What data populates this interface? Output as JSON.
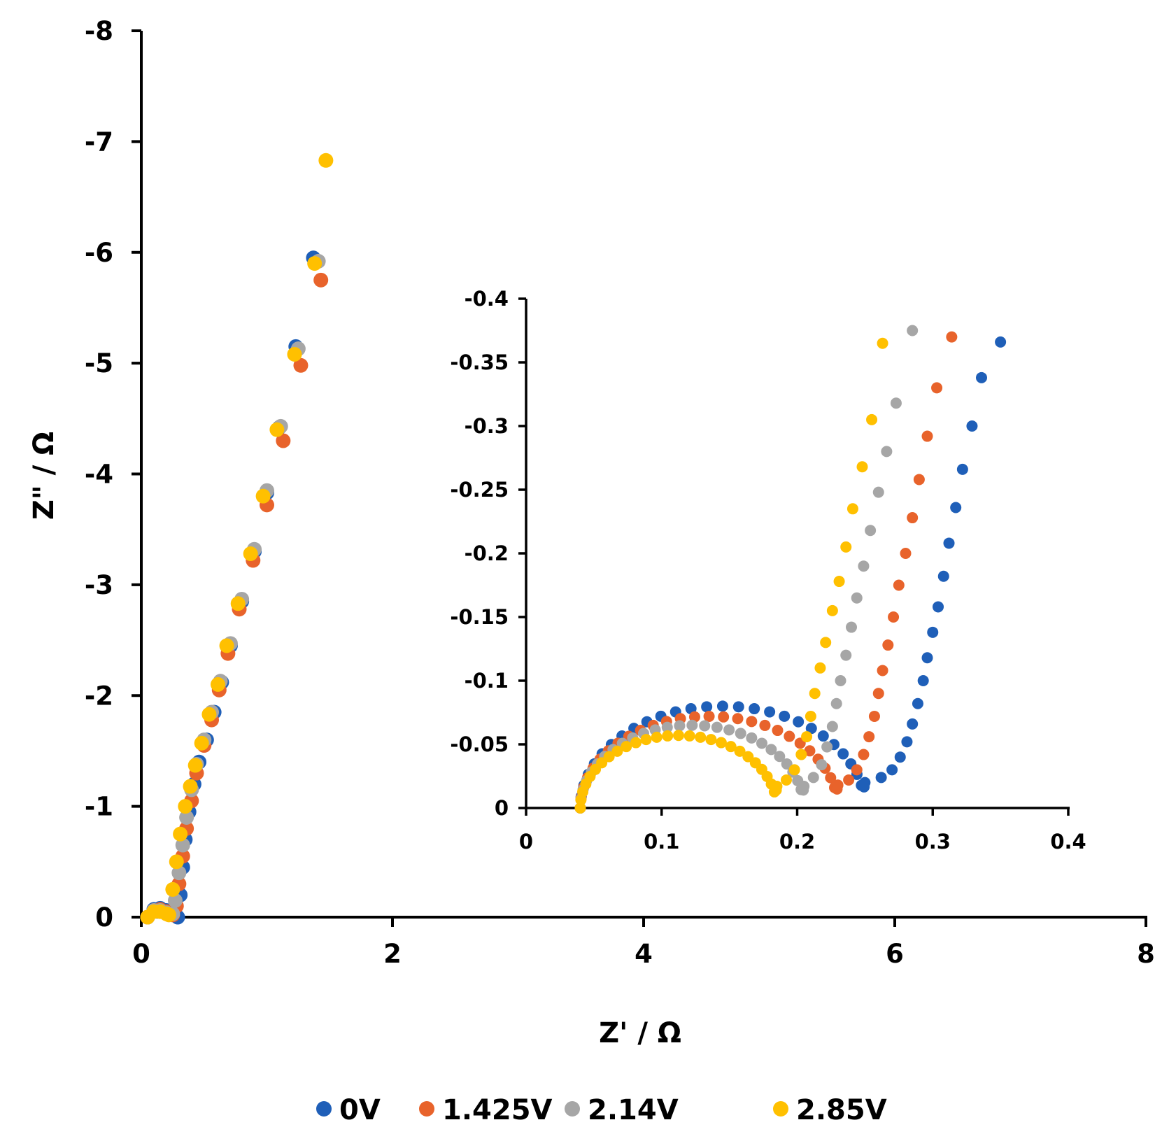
{
  "chart_data": [
    {
      "type": "scatter",
      "panel": "main",
      "xlabel": "Z' / Ω",
      "ylabel": "Z\" / Ω",
      "xlim": [
        0,
        8
      ],
      "ylim": [
        0,
        -8
      ],
      "x_ticks": [
        "0",
        "2",
        "4",
        "6",
        "8"
      ],
      "y_ticks": [
        "0",
        "-1",
        "-2",
        "-3",
        "-4",
        "-5",
        "-6",
        "-7",
        "-8"
      ],
      "grid": false,
      "legend_position": "bottom",
      "series": [
        {
          "name": "0V",
          "color": "#1f5fb8",
          "points": [
            [
              0.05,
              0.0
            ],
            [
              0.1,
              -0.07
            ],
            [
              0.15,
              -0.08
            ],
            [
              0.2,
              -0.06
            ],
            [
              0.25,
              -0.03
            ],
            [
              0.29,
              0.0
            ],
            [
              0.31,
              -0.2
            ],
            [
              0.33,
              -0.45
            ],
            [
              0.35,
              -0.7
            ],
            [
              0.38,
              -0.95
            ],
            [
              0.42,
              -1.2
            ],
            [
              0.46,
              -1.4
            ],
            [
              0.52,
              -1.6
            ],
            [
              0.58,
              -1.85
            ],
            [
              0.64,
              -2.12
            ],
            [
              0.71,
              -2.45
            ],
            [
              0.8,
              -2.85
            ],
            [
              0.9,
              -3.3
            ],
            [
              1.0,
              -3.83
            ],
            [
              1.1,
              -4.42
            ],
            [
              1.23,
              -5.15
            ],
            [
              1.37,
              -5.95
            ]
          ]
        },
        {
          "name": "1.425V",
          "color": "#e8632b",
          "points": [
            [
              0.05,
              0.0
            ],
            [
              0.1,
              -0.06
            ],
            [
              0.15,
              -0.07
            ],
            [
              0.2,
              -0.05
            ],
            [
              0.25,
              -0.02
            ],
            [
              0.28,
              -0.1
            ],
            [
              0.3,
              -0.3
            ],
            [
              0.33,
              -0.55
            ],
            [
              0.36,
              -0.8
            ],
            [
              0.4,
              -1.05
            ],
            [
              0.44,
              -1.3
            ],
            [
              0.5,
              -1.55
            ],
            [
              0.56,
              -1.78
            ],
            [
              0.62,
              -2.05
            ],
            [
              0.69,
              -2.38
            ],
            [
              0.78,
              -2.78
            ],
            [
              0.89,
              -3.22
            ],
            [
              1.0,
              -3.72
            ],
            [
              1.13,
              -4.3
            ],
            [
              1.27,
              -4.98
            ],
            [
              1.43,
              -5.75
            ]
          ]
        },
        {
          "name": "2.14V",
          "color": "#a6a6a6",
          "points": [
            [
              0.05,
              0.0
            ],
            [
              0.1,
              -0.06
            ],
            [
              0.15,
              -0.06
            ],
            [
              0.2,
              -0.04
            ],
            [
              0.25,
              -0.03
            ],
            [
              0.27,
              -0.15
            ],
            [
              0.3,
              -0.4
            ],
            [
              0.33,
              -0.65
            ],
            [
              0.36,
              -0.9
            ],
            [
              0.4,
              -1.15
            ],
            [
              0.44,
              -1.38
            ],
            [
              0.5,
              -1.6
            ],
            [
              0.56,
              -1.85
            ],
            [
              0.63,
              -2.13
            ],
            [
              0.71,
              -2.47
            ],
            [
              0.8,
              -2.87
            ],
            [
              0.9,
              -3.32
            ],
            [
              1.0,
              -3.85
            ],
            [
              1.11,
              -4.43
            ],
            [
              1.25,
              -5.13
            ],
            [
              1.41,
              -5.92
            ]
          ]
        },
        {
          "name": "2.85V",
          "color": "#ffc000",
          "points": [
            [
              0.05,
              0.0
            ],
            [
              0.1,
              -0.05
            ],
            [
              0.15,
              -0.05
            ],
            [
              0.2,
              -0.03
            ],
            [
              0.22,
              -0.02
            ],
            [
              0.25,
              -0.25
            ],
            [
              0.28,
              -0.5
            ],
            [
              0.31,
              -0.75
            ],
            [
              0.35,
              -1.0
            ],
            [
              0.39,
              -1.18
            ],
            [
              0.43,
              -1.37
            ],
            [
              0.48,
              -1.57
            ],
            [
              0.54,
              -1.83
            ],
            [
              0.61,
              -2.1
            ],
            [
              0.68,
              -2.45
            ],
            [
              0.77,
              -2.83
            ],
            [
              0.87,
              -3.28
            ],
            [
              0.97,
              -3.8
            ],
            [
              1.08,
              -4.4
            ],
            [
              1.22,
              -5.08
            ],
            [
              1.38,
              -5.9
            ],
            [
              1.47,
              -6.83
            ]
          ]
        }
      ]
    },
    {
      "type": "scatter",
      "panel": "inset",
      "xlim": [
        0,
        0.4
      ],
      "ylim": [
        0,
        -0.4
      ],
      "x_ticks": [
        "0",
        "0.1",
        "0.2",
        "0.3",
        "0.4"
      ],
      "y_ticks": [
        "0",
        "-0.05",
        "-0.1",
        "-0.15",
        "-0.2",
        "-0.25",
        "-0.3",
        "-0.35",
        "-0.4"
      ],
      "grid": false,
      "series": [
        {
          "name": "0V",
          "color": "#1f5fb8",
          "arc": {
            "start": 0.04,
            "end": 0.25,
            "peak": 0.08,
            "min": 0.02
          },
          "tail": [
            [
              0.262,
              -0.024
            ],
            [
              0.27,
              -0.03
            ],
            [
              0.276,
              -0.04
            ],
            [
              0.281,
              -0.052
            ],
            [
              0.285,
              -0.066
            ],
            [
              0.289,
              -0.082
            ],
            [
              0.293,
              -0.1
            ],
            [
              0.296,
              -0.118
            ],
            [
              0.3,
              -0.138
            ],
            [
              0.304,
              -0.158
            ],
            [
              0.308,
              -0.182
            ],
            [
              0.312,
              -0.208
            ],
            [
              0.317,
              -0.236
            ],
            [
              0.322,
              -0.266
            ],
            [
              0.329,
              -0.3
            ],
            [
              0.336,
              -0.338
            ],
            [
              0.35,
              -0.366
            ]
          ]
        },
        {
          "name": "1.425V",
          "color": "#e8632b",
          "arc": {
            "start": 0.04,
            "end": 0.23,
            "peak": 0.072,
            "min": 0.018
          },
          "tail": [
            [
              0.238,
              -0.022
            ],
            [
              0.244,
              -0.03
            ],
            [
              0.249,
              -0.042
            ],
            [
              0.253,
              -0.056
            ],
            [
              0.257,
              -0.072
            ],
            [
              0.26,
              -0.09
            ],
            [
              0.263,
              -0.108
            ],
            [
              0.267,
              -0.128
            ],
            [
              0.271,
              -0.15
            ],
            [
              0.275,
              -0.175
            ],
            [
              0.28,
              -0.2
            ],
            [
              0.285,
              -0.228
            ],
            [
              0.29,
              -0.258
            ],
            [
              0.296,
              -0.292
            ],
            [
              0.303,
              -0.33
            ],
            [
              0.314,
              -0.37
            ]
          ]
        },
        {
          "name": "2.14V",
          "color": "#a6a6a6",
          "arc": {
            "start": 0.04,
            "end": 0.205,
            "peak": 0.065,
            "min": 0.017
          },
          "tail": [
            [
              0.212,
              -0.024
            ],
            [
              0.218,
              -0.034
            ],
            [
              0.222,
              -0.048
            ],
            [
              0.226,
              -0.064
            ],
            [
              0.229,
              -0.082
            ],
            [
              0.232,
              -0.1
            ],
            [
              0.236,
              -0.12
            ],
            [
              0.24,
              -0.142
            ],
            [
              0.244,
              -0.165
            ],
            [
              0.249,
              -0.19
            ],
            [
              0.254,
              -0.218
            ],
            [
              0.26,
              -0.248
            ],
            [
              0.266,
              -0.28
            ],
            [
              0.273,
              -0.318
            ],
            [
              0.285,
              -0.375
            ]
          ]
        },
        {
          "name": "2.85V",
          "color": "#ffc000",
          "arc": {
            "start": 0.04,
            "end": 0.185,
            "peak": 0.057,
            "min": 0.017
          },
          "tail": [
            [
              0.192,
              -0.022
            ],
            [
              0.198,
              -0.03
            ],
            [
              0.203,
              -0.042
            ],
            [
              0.207,
              -0.056
            ],
            [
              0.21,
              -0.072
            ],
            [
              0.213,
              -0.09
            ],
            [
              0.217,
              -0.11
            ],
            [
              0.221,
              -0.13
            ],
            [
              0.226,
              -0.155
            ],
            [
              0.231,
              -0.178
            ],
            [
              0.236,
              -0.205
            ],
            [
              0.241,
              -0.235
            ],
            [
              0.248,
              -0.268
            ],
            [
              0.255,
              -0.305
            ],
            [
              0.263,
              -0.365
            ]
          ]
        }
      ]
    }
  ]
}
